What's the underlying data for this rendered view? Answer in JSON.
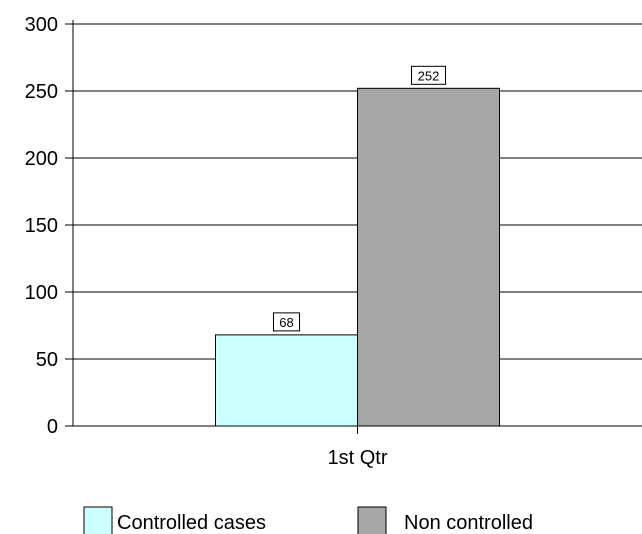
{
  "chart_data": {
    "type": "bar",
    "categories": [
      "1st Qtr"
    ],
    "series": [
      {
        "name": "Controlled cases",
        "values": [
          68
        ],
        "color": "#ccffff"
      },
      {
        "name": "Non controlled",
        "values": [
          252
        ],
        "color": "#a6a6a6"
      }
    ],
    "data_labels": [
      "68",
      "252"
    ],
    "ylim": [
      0,
      300
    ],
    "yticks": [
      0,
      50,
      100,
      150,
      200,
      250,
      300
    ],
    "grid": true,
    "legend_position": "bottom",
    "title": "",
    "xlabel": "",
    "ylabel": ""
  }
}
